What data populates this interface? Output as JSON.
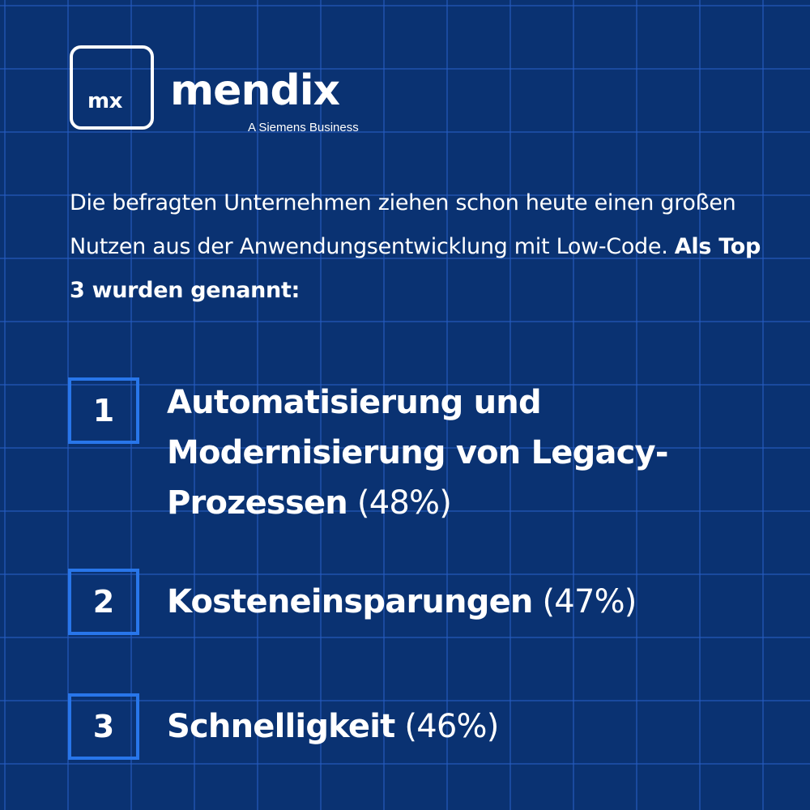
{
  "logo": {
    "box_text": "mx",
    "wordmark": "mendix",
    "tagline": "A Siemens Business"
  },
  "intro": {
    "text": "Die befragten Unternehmen ziehen schon heute einen großen Nutzen aus der Anwendungsentwicklung mit Low-Code.",
    "highlight": "Als Top 3 wurden genannt:"
  },
  "items": [
    {
      "number": "1",
      "title": "Automatisierung und Modernisierung von Legacy-Prozessen",
      "percent": "(48%)"
    },
    {
      "number": "2",
      "title": "Kosteneinsparungen",
      "percent": "(47%)"
    },
    {
      "number": "3",
      "title": "Schnelligkeit",
      "percent": "(46%)"
    }
  ],
  "colors": {
    "background": "#0a3272",
    "grid": "#265cc4",
    "number_border": "#2876ea",
    "text": "#ffffff"
  }
}
